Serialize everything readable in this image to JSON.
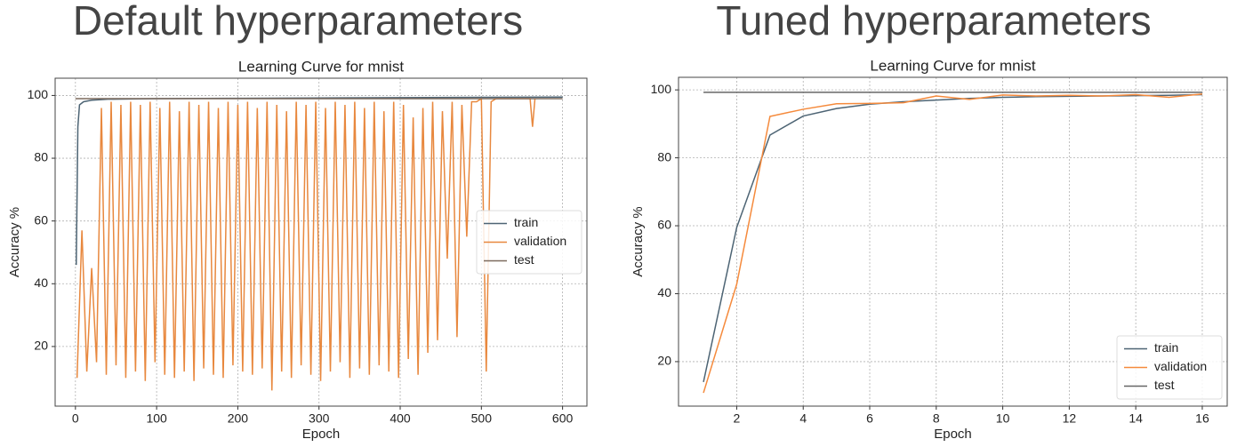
{
  "chart_data": [
    {
      "type": "line",
      "panel_title": "Default hyperparameters",
      "title": "Learning Curve for mnist",
      "x_label": "Epoch",
      "y_label": "Accuracy %",
      "xlim": [
        -25,
        630
      ],
      "ylim": [
        1,
        105.5
      ],
      "xticks": [
        0,
        100,
        200,
        300,
        400,
        500,
        600
      ],
      "yticks": [
        20,
        40,
        60,
        80,
        100
      ],
      "grid": true,
      "legend": "center right",
      "series": [
        {
          "name": "train",
          "color": "#4d6474",
          "x": [
            1,
            3,
            5,
            10,
            20,
            40,
            100,
            200,
            300,
            400,
            500,
            600
          ],
          "values": [
            46,
            90,
            97,
            98,
            98.5,
            98.8,
            99,
            99.1,
            99.2,
            99.3,
            99.4,
            99.5
          ]
        },
        {
          "name": "validation",
          "color": "#e8883e",
          "x": [
            2,
            8,
            14,
            20,
            26,
            32,
            38,
            44,
            50,
            56,
            62,
            68,
            74,
            80,
            86,
            92,
            98,
            104,
            110,
            116,
            122,
            128,
            134,
            140,
            146,
            152,
            158,
            164,
            170,
            176,
            182,
            188,
            194,
            200,
            206,
            212,
            218,
            224,
            230,
            236,
            242,
            248,
            254,
            260,
            266,
            272,
            278,
            284,
            290,
            296,
            302,
            308,
            314,
            320,
            326,
            332,
            338,
            344,
            350,
            356,
            362,
            368,
            374,
            380,
            386,
            392,
            398,
            404,
            410,
            416,
            422,
            428,
            434,
            440,
            446,
            452,
            458,
            464,
            470,
            476,
            482,
            488,
            494,
            500,
            506,
            512,
            518,
            530,
            545,
            560,
            563,
            566
          ],
          "values": [
            10,
            57,
            12,
            45,
            15,
            96,
            11,
            98,
            14,
            97,
            10,
            98,
            12,
            97,
            9,
            98,
            15,
            96,
            11,
            98,
            10,
            95,
            12,
            98,
            9,
            97,
            13,
            98,
            11,
            96,
            10,
            98,
            14,
            97,
            12,
            98,
            11,
            96,
            13,
            98,
            6,
            97,
            12,
            95,
            10,
            98,
            14,
            97,
            11,
            98,
            9,
            96,
            12,
            98,
            15,
            97,
            10,
            98,
            13,
            96,
            11,
            98,
            14,
            95,
            12,
            98,
            10,
            97,
            16,
            93,
            11,
            96,
            18,
            98,
            22,
            95,
            48,
            98,
            23,
            97,
            55,
            98,
            98,
            99,
            12,
            98,
            99,
            99,
            99,
            99,
            90,
            99
          ]
        },
        {
          "name": "test",
          "color": "#7d6b5e",
          "x": [
            0,
            600
          ],
          "values": [
            99,
            99
          ]
        }
      ]
    },
    {
      "type": "line",
      "panel_title": "Tuned hyperparameters",
      "title": "Learning Curve for mnist",
      "x_label": "Epoch",
      "y_label": "Accuracy %",
      "xlim": [
        0.25,
        16.75
      ],
      "ylim": [
        6.9,
        103.7
      ],
      "xticks": [
        2,
        4,
        6,
        8,
        10,
        12,
        14,
        16
      ],
      "yticks": [
        20,
        40,
        60,
        80,
        100
      ],
      "grid": true,
      "legend": "lower right",
      "series": [
        {
          "name": "train",
          "color": "#4d6474",
          "x": [
            1,
            2,
            3,
            4,
            5,
            6,
            7,
            8,
            9,
            10,
            11,
            12,
            13,
            14,
            15,
            16
          ],
          "values": [
            14,
            59.5,
            86.7,
            92.3,
            94.5,
            95.8,
            96.5,
            97,
            97.5,
            97.8,
            98,
            98.1,
            98.2,
            98.3,
            98.4,
            98.6
          ]
        },
        {
          "name": "validation",
          "color": "#f58a3c",
          "x": [
            1,
            2,
            3,
            4,
            5,
            6,
            7,
            8,
            9,
            10,
            11,
            12,
            13,
            14,
            15,
            16
          ],
          "values": [
            10.8,
            42.8,
            92.2,
            94.3,
            95.9,
            96,
            96.2,
            98.2,
            97.2,
            98.5,
            98.2,
            98.4,
            98.2,
            98.6,
            97.8,
            98.8
          ]
        },
        {
          "name": "test",
          "color": "#666666",
          "x": [
            1,
            16
          ],
          "values": [
            99.3,
            99.3
          ]
        }
      ]
    }
  ]
}
